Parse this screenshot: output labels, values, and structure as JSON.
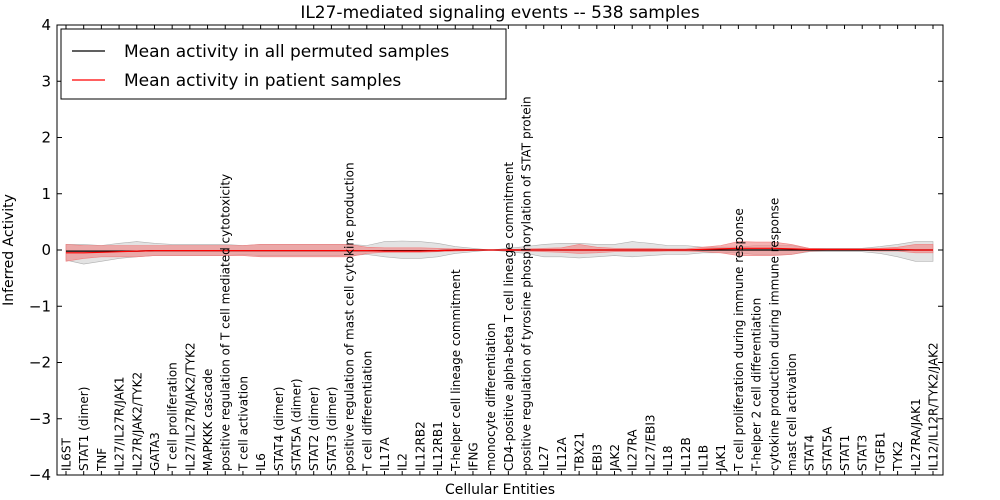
{
  "chart_data": {
    "type": "line",
    "title": "IL27-mediated signaling events -- 538 samples",
    "xlabel": "Cellular Entities",
    "ylabel": "Inferred Activity",
    "ylim": [
      -4,
      4
    ],
    "yticks": [
      4,
      3,
      2,
      1,
      0,
      -1,
      -2,
      -3,
      -4
    ],
    "ytick_labels": [
      "4",
      "3",
      "2",
      "1",
      "0",
      "−1",
      "−2",
      "−3",
      "−4"
    ],
    "legend_position": "top-left",
    "categories": [
      "IL6ST",
      "STAT1 (dimer)",
      "TNF",
      "IL27/IL27R/JAK1",
      "IL27R/JAK2/TYK2",
      "GATA3",
      "T cell proliferation",
      "IL27/IL27R/JAK2/TYK2",
      "MAPKKK cascade",
      "positive regulation of T cell mediated cytotoxicity",
      "T cell activation",
      "IL6",
      "STAT4 (dimer)",
      "STAT5A (dimer)",
      "STAT2 (dimer)",
      "STAT3 (dimer)",
      "positive regulation of mast cell cytokine production",
      "T cell differentiation",
      "IL17A",
      "IL2",
      "IL12RB2",
      "IL12RB1",
      "T-helper cell lineage commitment",
      "IFNG",
      "monocyte differentiation",
      "CD4-positive alpha-beta T cell lineage commitment",
      "positive regulation of tyrosine phosphorylation of STAT protein",
      "IL27",
      "IL12A",
      "TBX21",
      "EBI3",
      "JAK2",
      "IL27RA",
      "IL27/EBI3",
      "IL18",
      "IL12B",
      "IL1B",
      "JAK1",
      "T cell proliferation during immune response",
      "T-helper 2 cell differentiation",
      "cytokine production during immune response",
      "mast cell activation",
      "STAT4",
      "STAT5A",
      "STAT1",
      "STAT3",
      "TGFB1",
      "TYK2",
      "IL27RA/JAK1",
      "IL12/IL12R/TYK2/JAK2"
    ],
    "series": [
      {
        "name": "Mean activity in all permuted samples",
        "color": "#000000",
        "values": [
          -0.02,
          -0.02,
          -0.02,
          -0.02,
          -0.02,
          -0.01,
          -0.01,
          -0.01,
          -0.01,
          -0.01,
          -0.01,
          -0.01,
          -0.01,
          -0.01,
          -0.01,
          -0.01,
          -0.01,
          -0.01,
          -0.01,
          -0.01,
          -0.01,
          -0.01,
          0,
          0,
          0,
          0,
          0,
          0,
          0,
          0,
          0,
          0,
          0,
          0,
          0,
          0,
          0,
          0,
          0,
          0,
          0,
          0,
          0,
          0,
          0,
          0,
          0,
          0,
          0,
          0
        ],
        "band_lower": [
          -0.18,
          -0.25,
          -0.2,
          -0.15,
          -0.12,
          -0.1,
          -0.1,
          -0.1,
          -0.1,
          -0.1,
          -0.08,
          -0.1,
          -0.1,
          -0.1,
          -0.1,
          -0.1,
          -0.1,
          -0.08,
          -0.12,
          -0.15,
          -0.15,
          -0.12,
          -0.06,
          -0.03,
          0,
          -0.03,
          -0.06,
          -0.12,
          -0.12,
          -0.14,
          -0.12,
          -0.1,
          -0.12,
          -0.1,
          -0.08,
          -0.08,
          -0.05,
          -0.05,
          -0.05,
          -0.08,
          -0.08,
          -0.08,
          -0.03,
          -0.03,
          -0.03,
          -0.03,
          -0.06,
          -0.12,
          -0.2,
          -0.2
        ],
        "band_upper": [
          0.1,
          0.1,
          0.08,
          0.12,
          0.15,
          0.12,
          0.1,
          0.1,
          0.1,
          0.1,
          0.08,
          0.1,
          0.1,
          0.1,
          0.1,
          0.1,
          0.1,
          0.08,
          0.15,
          0.16,
          0.15,
          0.12,
          0.06,
          0.03,
          0,
          0.03,
          0.06,
          0.1,
          0.12,
          0.12,
          0.1,
          0.1,
          0.15,
          0.12,
          0.08,
          0.08,
          0.05,
          0.05,
          0.05,
          0.08,
          0.08,
          0.08,
          0.03,
          0.03,
          0.03,
          0.03,
          0.06,
          0.1,
          0.15,
          0.15
        ]
      },
      {
        "name": "Mean activity in patient samples",
        "color": "#ff0000",
        "values": [
          -0.05,
          -0.05,
          -0.04,
          -0.03,
          -0.02,
          -0.01,
          -0.01,
          -0.01,
          -0.01,
          -0.01,
          -0.01,
          -0.01,
          -0.01,
          -0.01,
          -0.01,
          -0.01,
          -0.01,
          -0.01,
          -0.02,
          -0.02,
          -0.02,
          -0.01,
          0,
          0,
          0,
          0,
          0,
          0,
          0,
          0,
          0,
          0,
          0,
          0,
          0,
          0,
          0.01,
          0.02,
          0.03,
          0.03,
          0.03,
          0.02,
          0.01,
          0.01,
          0.01,
          0.01,
          0.01,
          0.01,
          0,
          0
        ],
        "band_lower": [
          -0.2,
          -0.15,
          -0.12,
          -0.12,
          -0.12,
          -0.1,
          -0.1,
          -0.1,
          -0.1,
          -0.1,
          -0.1,
          -0.12,
          -0.12,
          -0.12,
          -0.12,
          -0.12,
          -0.12,
          -0.06,
          -0.04,
          -0.04,
          -0.04,
          -0.03,
          -0.02,
          -0.01,
          0,
          -0.01,
          -0.02,
          -0.03,
          -0.04,
          -0.06,
          -0.05,
          -0.03,
          -0.03,
          -0.03,
          -0.02,
          -0.02,
          -0.03,
          -0.05,
          -0.1,
          -0.1,
          -0.1,
          -0.08,
          -0.02,
          -0.01,
          -0.01,
          -0.01,
          -0.02,
          -0.02,
          -0.05,
          -0.05
        ],
        "band_upper": [
          0.1,
          0.08,
          0.08,
          0.08,
          0.08,
          0.08,
          0.08,
          0.08,
          0.08,
          0.08,
          0.08,
          0.1,
          0.1,
          0.1,
          0.1,
          0.1,
          0.1,
          0.05,
          0.04,
          0.04,
          0.04,
          0.03,
          0.02,
          0.01,
          0,
          0.01,
          0.02,
          0.03,
          0.04,
          0.1,
          0.05,
          0.03,
          0.03,
          0.03,
          0.02,
          0.02,
          0.05,
          0.08,
          0.15,
          0.14,
          0.14,
          0.1,
          0.03,
          0.02,
          0.02,
          0.02,
          0.03,
          0.05,
          0.1,
          0.1
        ]
      }
    ]
  }
}
